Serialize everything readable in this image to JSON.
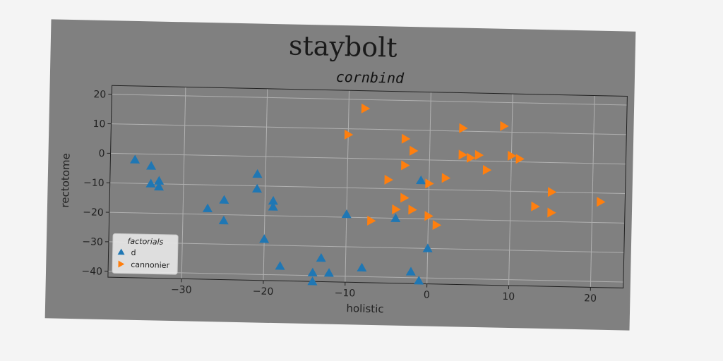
{
  "figure": {
    "title": "staybolt"
  },
  "chart_data": {
    "type": "scatter",
    "title": "cornbind",
    "xlabel": "holistic",
    "ylabel": "rectotome",
    "xlim": [
      -39,
      24
    ],
    "ylim": [
      -42,
      23
    ],
    "xticks": [
      -30,
      -20,
      -10,
      0,
      10,
      20
    ],
    "yticks": [
      -40,
      -30,
      -20,
      -10,
      0,
      10,
      20
    ],
    "tick_labels_x": [
      "−30",
      "−20",
      "−10",
      "0",
      "10",
      "20"
    ],
    "tick_labels_y": [
      "−40",
      "−30",
      "−20",
      "−10",
      "0",
      "10",
      "20"
    ],
    "grid": true,
    "legend": {
      "title": "factorials",
      "placement": "lower-left"
    },
    "series": [
      {
        "name": "d",
        "marker": "triangle-up",
        "color": "#1f77b4",
        "points": [
          [
            -36,
            -2
          ],
          [
            -34,
            -4
          ],
          [
            -34,
            -10
          ],
          [
            -33,
            -9
          ],
          [
            -33,
            -11
          ],
          [
            -27,
            -18
          ],
          [
            -25,
            -15
          ],
          [
            -25,
            -22
          ],
          [
            -21,
            -6
          ],
          [
            -21,
            -11
          ],
          [
            -20,
            -28
          ],
          [
            -19,
            -15
          ],
          [
            -19,
            -17
          ],
          [
            -18,
            -37
          ],
          [
            -14,
            -39
          ],
          [
            -14,
            -42
          ],
          [
            -13,
            -34
          ],
          [
            -12,
            -39
          ],
          [
            -10,
            -19
          ],
          [
            -8,
            -37
          ],
          [
            -4,
            -20
          ],
          [
            -2,
            -38
          ],
          [
            -1,
            -7
          ],
          [
            -1,
            -41
          ],
          [
            0,
            -30
          ]
        ]
      },
      {
        "name": "cannonier",
        "marker": "triangle-right",
        "color": "#ff7f0e",
        "points": [
          [
            -10,
            8
          ],
          [
            -8,
            17
          ],
          [
            -7,
            -21
          ],
          [
            -5,
            -7
          ],
          [
            -4,
            -17
          ],
          [
            -3,
            7
          ],
          [
            -3,
            -13
          ],
          [
            -3,
            -2
          ],
          [
            -2,
            3
          ],
          [
            -2,
            -17
          ],
          [
            0,
            -8
          ],
          [
            0,
            -19
          ],
          [
            1,
            -22
          ],
          [
            2,
            -6
          ],
          [
            4,
            11
          ],
          [
            4,
            2
          ],
          [
            5,
            1
          ],
          [
            6,
            2
          ],
          [
            7,
            -3
          ],
          [
            9,
            12
          ],
          [
            10,
            2
          ],
          [
            11,
            1
          ],
          [
            13,
            -15
          ],
          [
            15,
            -10
          ],
          [
            15,
            -17
          ],
          [
            21,
            -13
          ]
        ]
      }
    ]
  }
}
